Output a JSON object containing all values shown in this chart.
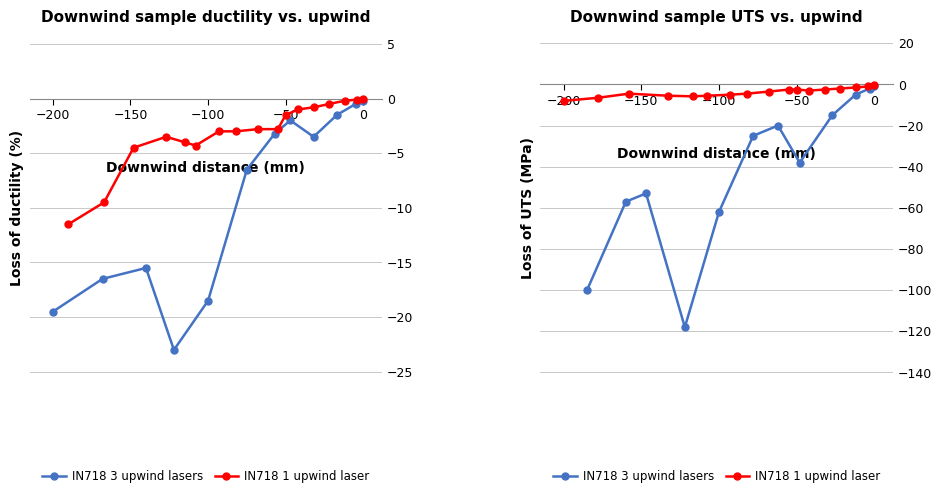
{
  "chart1": {
    "title": "Downwind sample ductility vs. upwind",
    "xlabel": "Downwind distance (mm)",
    "ylabel": "Loss of ductility (%)",
    "xlim": [
      -215,
      12
    ],
    "ylim": [
      -26,
      6
    ],
    "yticks": [
      5,
      0,
      -5,
      -10,
      -15,
      -20,
      -25
    ],
    "xticks": [
      -200,
      -150,
      -100,
      -50,
      0
    ],
    "blue_x": [
      -200,
      -168,
      -140,
      -122,
      -100,
      -75,
      -57,
      -47,
      -32,
      -17,
      -5,
      0
    ],
    "blue_y": [
      -19.5,
      -16.5,
      -15.5,
      -23.0,
      -18.5,
      -6.5,
      -3.2,
      -2.0,
      -3.5,
      -1.5,
      -0.5,
      -0.2
    ],
    "red_x": [
      -190,
      -167,
      -148,
      -127,
      -115,
      -108,
      -93,
      -82,
      -68,
      -55,
      -50,
      -42,
      -32,
      -22,
      -12,
      -4,
      0
    ],
    "red_y": [
      -11.5,
      -9.5,
      -4.5,
      -3.5,
      -4.0,
      -4.3,
      -3.0,
      -3.0,
      -2.8,
      -2.8,
      -1.5,
      -1.0,
      -0.8,
      -0.5,
      -0.2,
      -0.1,
      0.0
    ]
  },
  "chart2": {
    "title": "Downwind sample UTS vs. upwind",
    "xlabel": "Downwind distance (mm)",
    "ylabel": "Loss of UTS (MPa)",
    "xlim": [
      -215,
      12
    ],
    "ylim": [
      -145,
      25
    ],
    "yticks": [
      20,
      0,
      -20,
      -40,
      -60,
      -80,
      -100,
      -120,
      -140
    ],
    "xticks": [
      -200,
      -150,
      -100,
      -50,
      0
    ],
    "blue_x": [
      -185,
      -160,
      -147,
      -122,
      -100,
      -78,
      -62,
      -48,
      -27,
      -12,
      -3,
      0
    ],
    "blue_y": [
      -100,
      -57,
      -53,
      -118,
      -62,
      -25,
      -20,
      -38,
      -15,
      -5,
      -2,
      -1
    ],
    "red_x": [
      -200,
      -178,
      -158,
      -133,
      -117,
      -108,
      -93,
      -82,
      -68,
      -55,
      -50,
      -42,
      -32,
      -22,
      -12,
      -4,
      0
    ],
    "red_y": [
      -8.0,
      -6.5,
      -4.5,
      -5.5,
      -5.8,
      -5.5,
      -5.0,
      -4.5,
      -3.5,
      -2.5,
      -2.5,
      -3.0,
      -2.5,
      -2.0,
      -1.5,
      -1.0,
      -0.5
    ]
  },
  "blue_color": "#4472C4",
  "red_color": "#FF0000",
  "bg_color": "#FFFFFF",
  "grid_color": "#C8C8C8",
  "legend1_blue": "IN718 3 upwind lasers",
  "legend1_red": "IN718 1 upwind laser",
  "legend2_blue": "IN718 3 upwind lasers",
  "legend2_red": "IN718 1 upwind laser"
}
